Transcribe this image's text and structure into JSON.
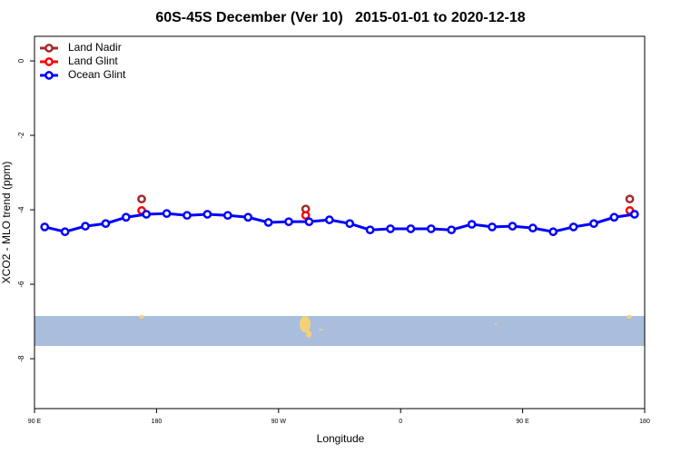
{
  "chart_data": {
    "type": "line",
    "title": "60S-45S December (Ver 10)   2015-01-01 to 2020-12-18",
    "xlabel": "Longitude",
    "ylabel": "XCO2 - MLO trend (ppm)",
    "xlim": [
      90,
      540
    ],
    "xticks": [
      {
        "value": 90,
        "label": "90 E"
      },
      {
        "value": 180,
        "label": "180"
      },
      {
        "value": 270,
        "label": "90 W"
      },
      {
        "value": 360,
        "label": "0"
      },
      {
        "value": 450,
        "label": "90 E"
      },
      {
        "value": 540,
        "label": "180"
      }
    ],
    "ylim": [
      -9.34,
      0.66
    ],
    "yticks": [
      0,
      -2,
      -4,
      -6,
      -8
    ],
    "legend": "top-left",
    "series": [
      {
        "name": "Land Nadir",
        "color": "#a52a2a",
        "lines": false,
        "x": [
          169,
          290,
          529
        ],
        "values": [
          -3.71,
          -3.98,
          -3.71
        ]
      },
      {
        "name": "Land Glint",
        "color": "#ff0000",
        "lines": false,
        "x": [
          169,
          290,
          529
        ],
        "values": [
          -4.02,
          -4.15,
          -4.02
        ]
      },
      {
        "name": "Ocean Glint",
        "color": "#0000ff",
        "lines": true,
        "x": [
          97.5,
          112.5,
          127.5,
          142.5,
          157.5,
          172.5,
          187.5,
          202.5,
          217.5,
          232.5,
          247.5,
          262.5,
          277.5,
          292.5,
          307.5,
          322.5,
          337.5,
          352.5,
          367.5,
          382.5,
          397.5,
          412.5,
          427.5,
          442.5,
          457.5,
          472.5,
          487.5,
          502.5,
          517.5,
          532.5
        ],
        "values": [
          -4.46,
          -4.59,
          -4.44,
          -4.37,
          -4.2,
          -4.12,
          -4.1,
          -4.15,
          -4.12,
          -4.15,
          -4.2,
          -4.34,
          -4.32,
          -4.32,
          -4.27,
          -4.37,
          -4.54,
          -4.51,
          -4.51,
          -4.51,
          -4.54,
          -4.39,
          -4.46,
          -4.44,
          -4.49,
          -4.59,
          -4.46,
          -4.37,
          -4.2,
          -4.12
        ]
      }
    ]
  }
}
